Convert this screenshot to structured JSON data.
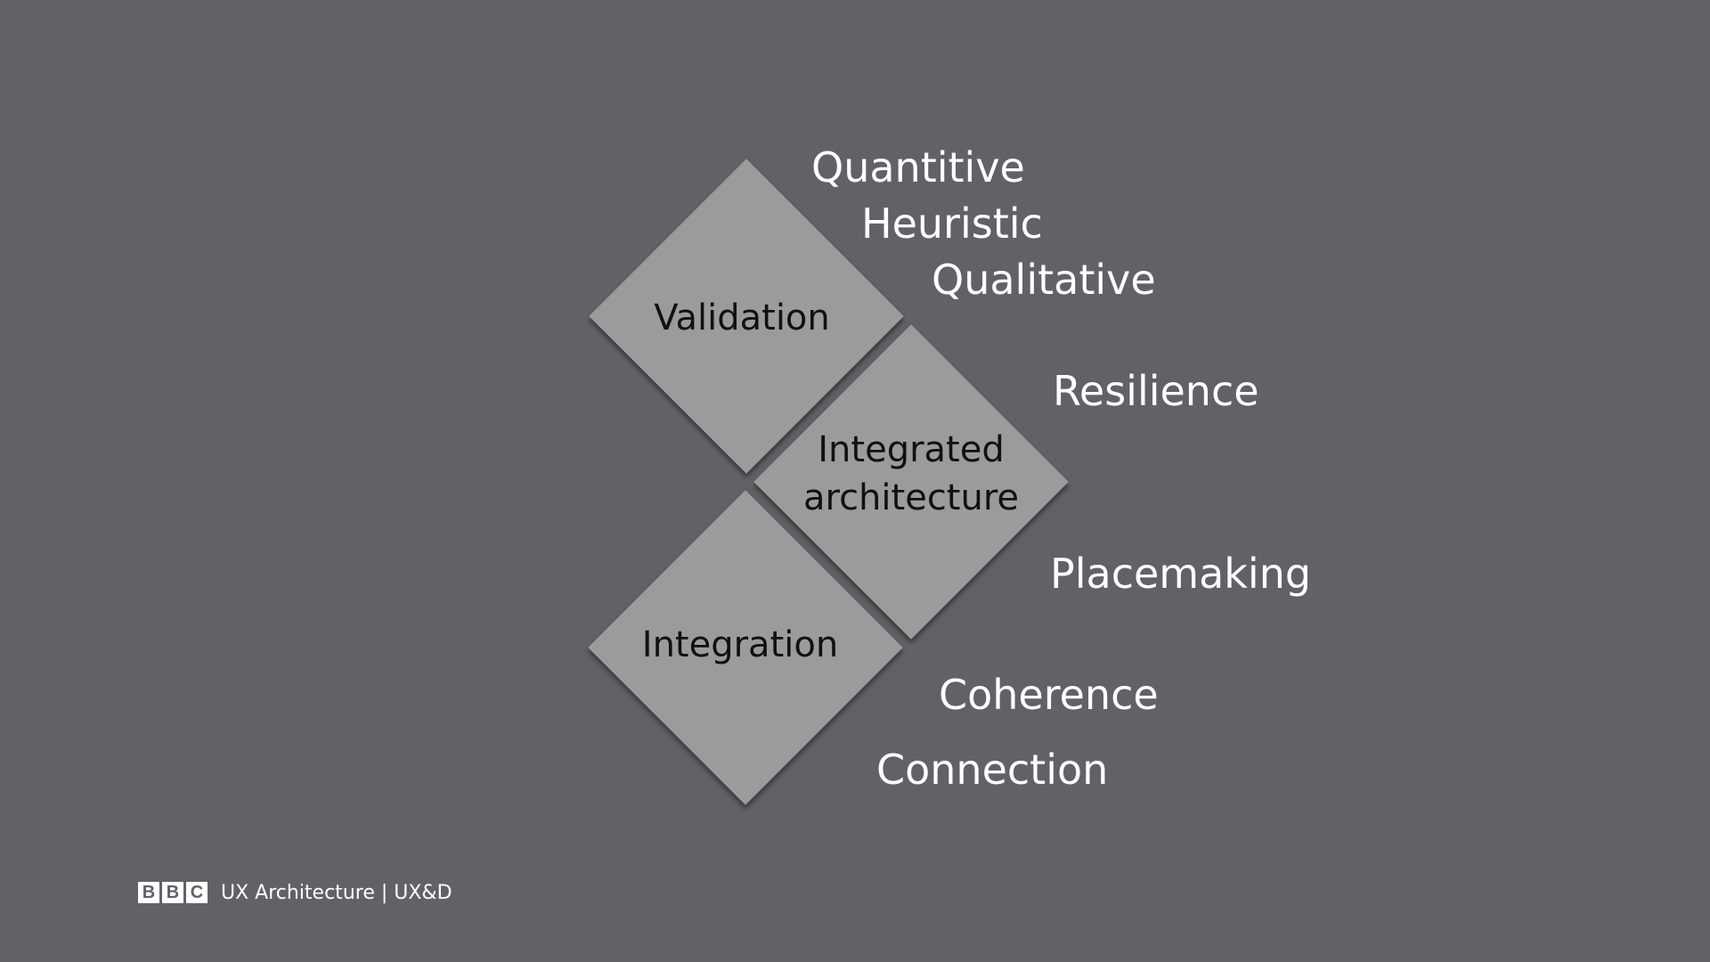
{
  "diagram": {
    "nodes": [
      {
        "id": "validation",
        "label": "Validation"
      },
      {
        "id": "integrated",
        "label": "Integrated\narchitecture"
      },
      {
        "id": "integration",
        "label": "Integration"
      }
    ],
    "terms": [
      "Quantitive",
      "Heuristic",
      "Qualitative",
      "Resilience",
      "Placemaking",
      "Coherence",
      "Connection"
    ]
  },
  "footer": {
    "logo_letters": [
      "B",
      "B",
      "C"
    ],
    "text": "UX Architecture | UX&D"
  },
  "colors": {
    "background": "#626167",
    "diamond": "#9b9b9b",
    "diamond_text": "#111111",
    "term_text": "#ffffff"
  }
}
